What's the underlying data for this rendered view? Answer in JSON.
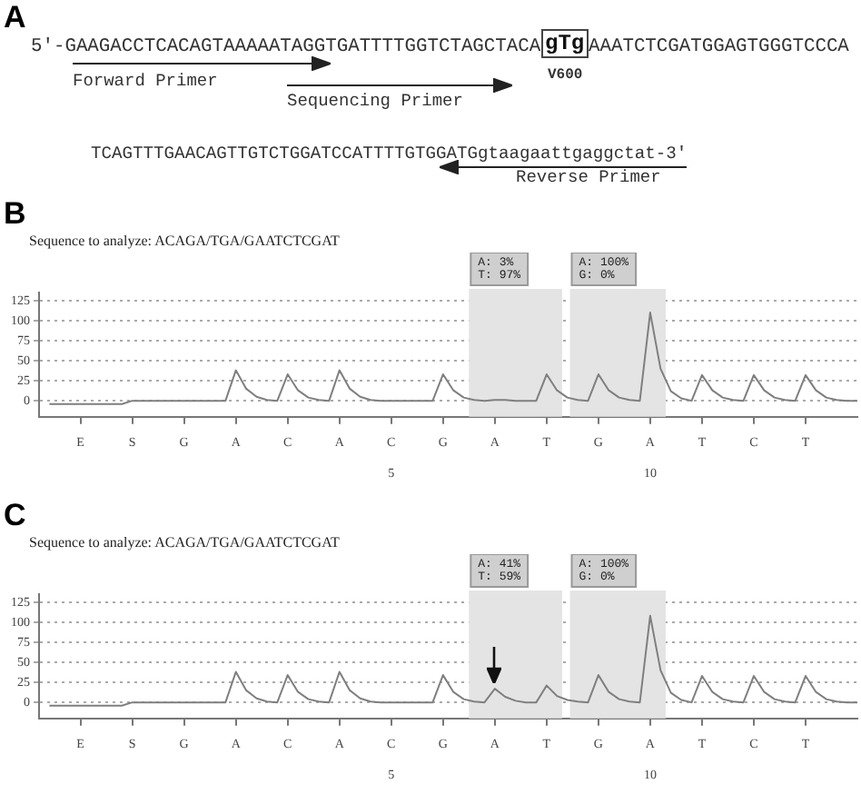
{
  "chart_data": [
    {
      "type": "other",
      "title": "A",
      "annotations": [
        "5′-GAAGACCTCACAGTAAAAATAGGTGATTTTGGTCTAGCTACA",
        "gTg",
        "AAATCTCGATGGAGTGGGTCCCA",
        "V600",
        "Forward Primer",
        "Sequencing Primer",
        "TCAGTTTGAACAGTTGTCTGGATCCATTTTGTGGATGgtaagaattgaggctat-3′",
        "Reverse Primer"
      ]
    },
    {
      "type": "line",
      "title": "B",
      "subtitle": "Sequence to analyze: ACAGA/TGA/GAATCTCGAT",
      "marker": "none",
      "grid": "y",
      "legend": false,
      "categories": [
        null,
        null,
        null,
        null,
        "E",
        null,
        null,
        null,
        null,
        "S",
        null,
        null,
        null,
        null,
        "G",
        null,
        null,
        null,
        null,
        "A",
        null,
        null,
        null,
        null,
        "C",
        null,
        null,
        null,
        null,
        "A",
        null,
        null,
        null,
        null,
        "C\n5",
        null,
        null,
        null,
        null,
        "G",
        null,
        null,
        null,
        null,
        "A",
        null,
        null,
        null,
        null,
        "T",
        null,
        null,
        null,
        null,
        "G",
        null,
        null,
        null,
        null,
        "A\n10",
        null,
        null,
        null,
        null,
        "T",
        null,
        null,
        null,
        null,
        "C",
        null,
        null,
        null,
        null,
        "T",
        null,
        null,
        null,
        null,
        null
      ],
      "ylim": [
        -20,
        135
      ],
      "yticks": [
        0,
        25,
        50,
        75,
        100,
        125
      ],
      "annotations": [
        "A: 3%\nT: 97%",
        "A: 100%\nG: 0%"
      ],
      "series": [
        {
          "color": "#7f7f7f",
          "values": [
            null,
            -4,
            -4,
            -4,
            -4,
            -4,
            -4,
            -4,
            -4,
            0,
            0,
            0,
            0,
            0,
            0,
            0,
            0,
            0,
            0,
            38,
            15,
            5,
            1,
            0,
            33,
            13,
            4,
            1,
            0,
            38,
            15,
            5,
            1,
            0,
            0,
            0,
            0,
            0,
            0,
            33,
            13,
            4,
            1,
            0,
            1,
            1,
            0,
            0,
            0,
            33,
            13,
            4,
            1,
            0,
            33,
            13,
            4,
            1,
            0,
            110,
            40,
            12,
            3,
            0,
            32,
            13,
            4,
            1,
            0,
            32,
            13,
            4,
            1,
            0,
            32,
            13,
            4,
            1,
            0,
            0
          ]
        }
      ]
    },
    {
      "type": "line",
      "title": "C",
      "subtitle": "Sequence to analyze: ACAGA/TGA/GAATCTCGAT",
      "marker": "none",
      "grid": "y",
      "legend": false,
      "categories": [
        null,
        null,
        null,
        null,
        "E",
        null,
        null,
        null,
        null,
        "S",
        null,
        null,
        null,
        null,
        "G",
        null,
        null,
        null,
        null,
        "A",
        null,
        null,
        null,
        null,
        "C",
        null,
        null,
        null,
        null,
        "A",
        null,
        null,
        null,
        null,
        "C\n5",
        null,
        null,
        null,
        null,
        "G",
        null,
        null,
        null,
        null,
        "A",
        null,
        null,
        null,
        null,
        "T",
        null,
        null,
        null,
        null,
        "G",
        null,
        null,
        null,
        null,
        "A\n10",
        null,
        null,
        null,
        null,
        "T",
        null,
        null,
        null,
        null,
        "C",
        null,
        null,
        null,
        null,
        "T",
        null,
        null,
        null,
        null,
        null
      ],
      "ylim": [
        -20,
        135
      ],
      "yticks": [
        0,
        25,
        50,
        75,
        100,
        125
      ],
      "annotations": [
        "A: 41%\nT: 59%",
        "A: 100%\nG: 0%"
      ],
      "series": [
        {
          "color": "#7f7f7f",
          "values": [
            null,
            -4,
            -4,
            -4,
            -4,
            -4,
            -4,
            -4,
            -4,
            0,
            0,
            0,
            0,
            0,
            0,
            0,
            0,
            0,
            0,
            38,
            15,
            5,
            1,
            0,
            34,
            13,
            4,
            1,
            0,
            38,
            15,
            5,
            1,
            0,
            0,
            0,
            0,
            0,
            0,
            34,
            13,
            4,
            1,
            0,
            17,
            7,
            2,
            0,
            0,
            21,
            8,
            3,
            1,
            0,
            34,
            13,
            4,
            1,
            0,
            108,
            40,
            12,
            3,
            0,
            33,
            13,
            4,
            1,
            0,
            33,
            13,
            4,
            1,
            0,
            33,
            13,
            4,
            1,
            0,
            0
          ]
        }
      ]
    }
  ]
}
